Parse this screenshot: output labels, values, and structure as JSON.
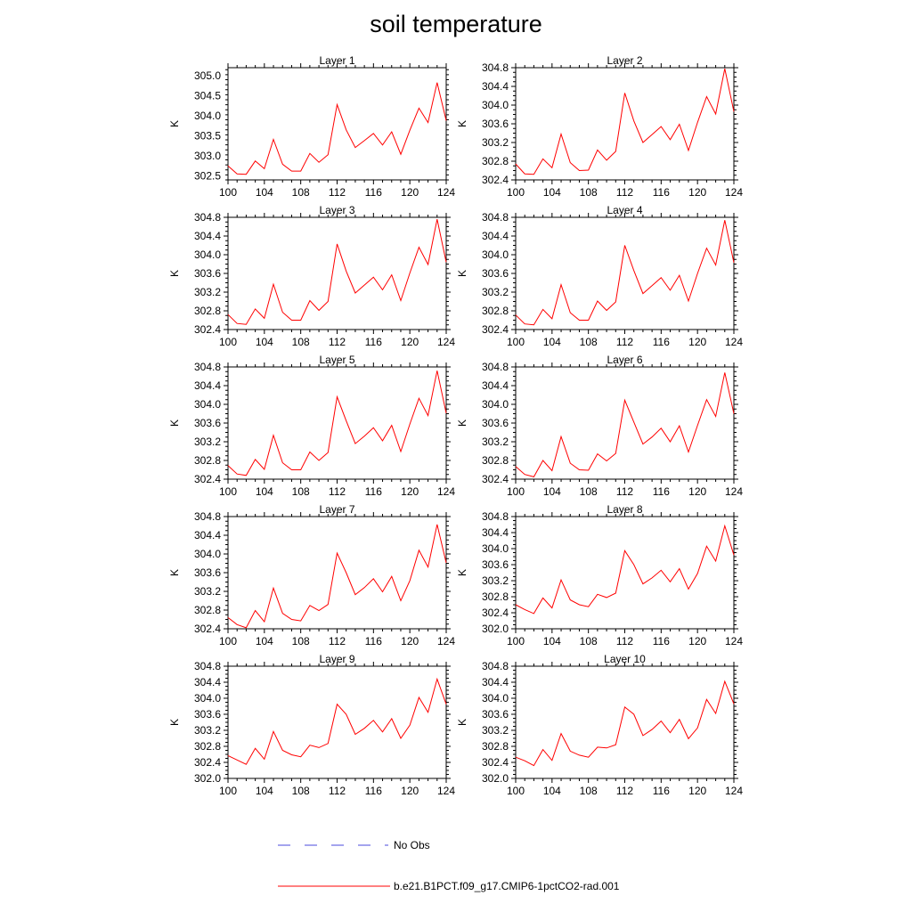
{
  "title": "soil temperature",
  "colors": {
    "model_line": "#ff0000",
    "obs_line": "#4a4adc",
    "axis": "#000000"
  },
  "legend": [
    {
      "label": "No Obs",
      "style": "dashed",
      "color": "#4a4adc"
    },
    {
      "label": "b.e21.B1PCT.f09_g17.CMIP6-1pctCO2-rad.001",
      "style": "solid",
      "color": "#ff0000"
    }
  ],
  "chart_data": [
    {
      "type": "line",
      "title": "Layer 1",
      "ylabel": "K",
      "xlim": [
        100,
        124
      ],
      "ylim": [
        302.4,
        305.2
      ],
      "xticks": [
        100,
        104,
        108,
        112,
        116,
        120,
        124
      ],
      "yticks": [
        302.5,
        303.0,
        303.5,
        304.0,
        304.5,
        305.0
      ],
      "ytick_decimals": 1,
      "x": [
        100,
        101,
        102,
        103,
        104,
        105,
        106,
        107,
        108,
        109,
        110,
        111,
        112,
        113,
        114,
        115,
        116,
        117,
        118,
        119,
        120,
        121,
        122,
        123,
        124
      ],
      "series": [
        {
          "values": [
            302.75,
            302.55,
            302.54,
            302.87,
            302.68,
            303.41,
            302.79,
            302.62,
            302.62,
            303.06,
            302.84,
            303.03,
            304.28,
            303.65,
            303.21,
            303.38,
            303.56,
            303.27,
            303.6,
            303.04,
            303.64,
            304.19,
            303.83,
            304.83,
            303.88
          ]
        }
      ]
    },
    {
      "type": "line",
      "title": "Layer 2",
      "ylabel": "K",
      "xlim": [
        100,
        124
      ],
      "ylim": [
        302.4,
        304.8
      ],
      "xticks": [
        100,
        104,
        108,
        112,
        116,
        120,
        124
      ],
      "yticks": [
        302.4,
        302.8,
        303.2,
        303.6,
        304.0,
        304.4,
        304.8
      ],
      "ytick_decimals": 1,
      "x": [
        100,
        101,
        102,
        103,
        104,
        105,
        106,
        107,
        108,
        109,
        110,
        111,
        112,
        113,
        114,
        115,
        116,
        117,
        118,
        119,
        120,
        121,
        122,
        123,
        124
      ],
      "series": [
        {
          "values": [
            302.74,
            302.53,
            302.52,
            302.85,
            302.66,
            303.38,
            302.77,
            302.6,
            302.61,
            303.04,
            302.82,
            303.01,
            304.26,
            303.66,
            303.2,
            303.37,
            303.54,
            303.26,
            303.59,
            303.03,
            303.63,
            304.18,
            303.81,
            304.78,
            303.86
          ]
        }
      ]
    },
    {
      "type": "line",
      "title": "Layer 3",
      "ylabel": "K",
      "xlim": [
        100,
        124
      ],
      "ylim": [
        302.4,
        304.8
      ],
      "xticks": [
        100,
        104,
        108,
        112,
        116,
        120,
        124
      ],
      "yticks": [
        302.4,
        302.8,
        303.2,
        303.6,
        304.0,
        304.4,
        304.8
      ],
      "ytick_decimals": 1,
      "x": [
        100,
        101,
        102,
        103,
        104,
        105,
        106,
        107,
        108,
        109,
        110,
        111,
        112,
        113,
        114,
        115,
        116,
        117,
        118,
        119,
        120,
        121,
        122,
        123,
        124
      ],
      "series": [
        {
          "values": [
            302.72,
            302.53,
            302.51,
            302.84,
            302.64,
            303.37,
            302.77,
            302.6,
            302.6,
            303.02,
            302.81,
            303.0,
            304.23,
            303.65,
            303.18,
            303.35,
            303.52,
            303.25,
            303.57,
            303.02,
            303.61,
            304.16,
            303.79,
            304.76,
            303.84
          ]
        }
      ]
    },
    {
      "type": "line",
      "title": "Layer 4",
      "ylabel": "K",
      "xlim": [
        100,
        124
      ],
      "ylim": [
        302.4,
        304.8
      ],
      "xticks": [
        100,
        104,
        108,
        112,
        116,
        120,
        124
      ],
      "yticks": [
        302.4,
        302.8,
        303.2,
        303.6,
        304.0,
        304.4,
        304.8
      ],
      "ytick_decimals": 1,
      "x": [
        100,
        101,
        102,
        103,
        104,
        105,
        106,
        107,
        108,
        109,
        110,
        111,
        112,
        113,
        114,
        115,
        116,
        117,
        118,
        119,
        120,
        121,
        122,
        123,
        124
      ],
      "series": [
        {
          "values": [
            302.71,
            302.52,
            302.5,
            302.83,
            302.63,
            303.36,
            302.76,
            302.6,
            302.6,
            303.01,
            302.81,
            302.99,
            304.2,
            303.66,
            303.17,
            303.34,
            303.51,
            303.24,
            303.56,
            303.01,
            303.6,
            304.14,
            303.78,
            304.74,
            303.83
          ]
        }
      ]
    },
    {
      "type": "line",
      "title": "Layer 5",
      "ylabel": "K",
      "xlim": [
        100,
        124
      ],
      "ylim": [
        302.4,
        304.8
      ],
      "xticks": [
        100,
        104,
        108,
        112,
        116,
        120,
        124
      ],
      "yticks": [
        302.4,
        302.8,
        303.2,
        303.6,
        304.0,
        304.4,
        304.8
      ],
      "ytick_decimals": 1,
      "x": [
        100,
        101,
        102,
        103,
        104,
        105,
        106,
        107,
        108,
        109,
        110,
        111,
        112,
        113,
        114,
        115,
        116,
        117,
        118,
        119,
        120,
        121,
        122,
        123,
        124
      ],
      "series": [
        {
          "values": [
            302.69,
            302.51,
            302.48,
            302.82,
            302.61,
            303.34,
            302.75,
            302.6,
            302.6,
            302.98,
            302.8,
            302.97,
            304.16,
            303.65,
            303.16,
            303.32,
            303.5,
            303.22,
            303.55,
            302.99,
            303.58,
            304.13,
            303.76,
            304.72,
            303.81
          ]
        }
      ]
    },
    {
      "type": "line",
      "title": "Layer 6",
      "ylabel": "K",
      "xlim": [
        100,
        124
      ],
      "ylim": [
        302.4,
        304.8
      ],
      "xticks": [
        100,
        104,
        108,
        112,
        116,
        120,
        124
      ],
      "yticks": [
        302.4,
        302.8,
        303.2,
        303.6,
        304.0,
        304.4,
        304.8
      ],
      "ytick_decimals": 1,
      "x": [
        100,
        101,
        102,
        103,
        104,
        105,
        106,
        107,
        108,
        109,
        110,
        111,
        112,
        113,
        114,
        115,
        116,
        117,
        118,
        119,
        120,
        121,
        122,
        123,
        124
      ],
      "series": [
        {
          "values": [
            302.67,
            302.5,
            302.45,
            302.8,
            302.58,
            303.31,
            302.74,
            302.6,
            302.59,
            302.94,
            302.79,
            302.95,
            304.09,
            303.62,
            303.15,
            303.3,
            303.49,
            303.2,
            303.54,
            302.98,
            303.55,
            304.1,
            303.74,
            304.68,
            303.8
          ]
        }
      ]
    },
    {
      "type": "line",
      "title": "Layer 7",
      "ylabel": "K",
      "xlim": [
        100,
        124
      ],
      "ylim": [
        302.4,
        304.8
      ],
      "xticks": [
        100,
        104,
        108,
        112,
        116,
        120,
        124
      ],
      "yticks": [
        302.4,
        302.8,
        303.2,
        303.6,
        304.0,
        304.4,
        304.8
      ],
      "ytick_decimals": 1,
      "x": [
        100,
        101,
        102,
        103,
        104,
        105,
        106,
        107,
        108,
        109,
        110,
        111,
        112,
        113,
        114,
        115,
        116,
        117,
        118,
        119,
        120,
        121,
        122,
        123,
        124
      ],
      "series": [
        {
          "values": [
            302.64,
            302.49,
            302.42,
            302.79,
            302.55,
            303.27,
            302.73,
            302.6,
            302.57,
            302.9,
            302.79,
            302.92,
            304.02,
            303.6,
            303.13,
            303.28,
            303.47,
            303.19,
            303.52,
            303.0,
            303.43,
            304.08,
            303.72,
            304.63,
            303.81
          ]
        }
      ]
    },
    {
      "type": "line",
      "title": "Layer 8",
      "ylabel": "K",
      "xlim": [
        100,
        124
      ],
      "ylim": [
        302.0,
        304.8
      ],
      "xticks": [
        100,
        104,
        108,
        112,
        116,
        120,
        124
      ],
      "yticks": [
        302.0,
        302.4,
        302.8,
        303.2,
        303.6,
        304.0,
        304.4,
        304.8
      ],
      "ytick_decimals": 1,
      "x": [
        100,
        101,
        102,
        103,
        104,
        105,
        106,
        107,
        108,
        109,
        110,
        111,
        112,
        113,
        114,
        115,
        116,
        117,
        118,
        119,
        120,
        121,
        122,
        123,
        124
      ],
      "series": [
        {
          "values": [
            302.6,
            302.48,
            302.38,
            302.77,
            302.52,
            303.22,
            302.72,
            302.6,
            302.55,
            302.86,
            302.78,
            302.89,
            303.95,
            303.6,
            303.12,
            303.27,
            303.46,
            303.17,
            303.5,
            302.99,
            303.38,
            304.06,
            303.69,
            304.57,
            303.84
          ]
        }
      ]
    },
    {
      "type": "line",
      "title": "Layer 9",
      "ylabel": "K",
      "xlim": [
        100,
        124
      ],
      "ylim": [
        302.0,
        304.8
      ],
      "xticks": [
        100,
        104,
        108,
        112,
        116,
        120,
        124
      ],
      "yticks": [
        302.0,
        302.4,
        302.8,
        303.2,
        303.6,
        304.0,
        304.4,
        304.8
      ],
      "ytick_decimals": 1,
      "x": [
        100,
        101,
        102,
        103,
        104,
        105,
        106,
        107,
        108,
        109,
        110,
        111,
        112,
        113,
        114,
        115,
        116,
        117,
        118,
        119,
        120,
        121,
        122,
        123,
        124
      ],
      "series": [
        {
          "values": [
            302.57,
            302.46,
            302.35,
            302.75,
            302.48,
            303.17,
            302.7,
            302.59,
            302.54,
            302.83,
            302.77,
            302.87,
            303.85,
            303.6,
            303.1,
            303.25,
            303.45,
            303.16,
            303.49,
            303.0,
            303.33,
            304.02,
            303.65,
            304.48,
            303.85
          ]
        }
      ]
    },
    {
      "type": "line",
      "title": "Layer 10",
      "ylabel": "K",
      "xlim": [
        100,
        124
      ],
      "ylim": [
        302.0,
        304.8
      ],
      "xticks": [
        100,
        104,
        108,
        112,
        116,
        120,
        124
      ],
      "yticks": [
        302.0,
        302.4,
        302.8,
        303.2,
        303.6,
        304.0,
        304.4,
        304.8
      ],
      "ytick_decimals": 1,
      "x": [
        100,
        101,
        102,
        103,
        104,
        105,
        106,
        107,
        108,
        109,
        110,
        111,
        112,
        113,
        114,
        115,
        116,
        117,
        118,
        119,
        120,
        121,
        122,
        123,
        124
      ],
      "series": [
        {
          "values": [
            302.53,
            302.44,
            302.32,
            302.72,
            302.45,
            303.12,
            302.68,
            302.58,
            302.53,
            302.78,
            302.76,
            302.84,
            303.78,
            303.6,
            303.07,
            303.22,
            303.43,
            303.14,
            303.47,
            302.99,
            303.26,
            303.97,
            303.62,
            304.42,
            303.86
          ]
        }
      ]
    }
  ]
}
